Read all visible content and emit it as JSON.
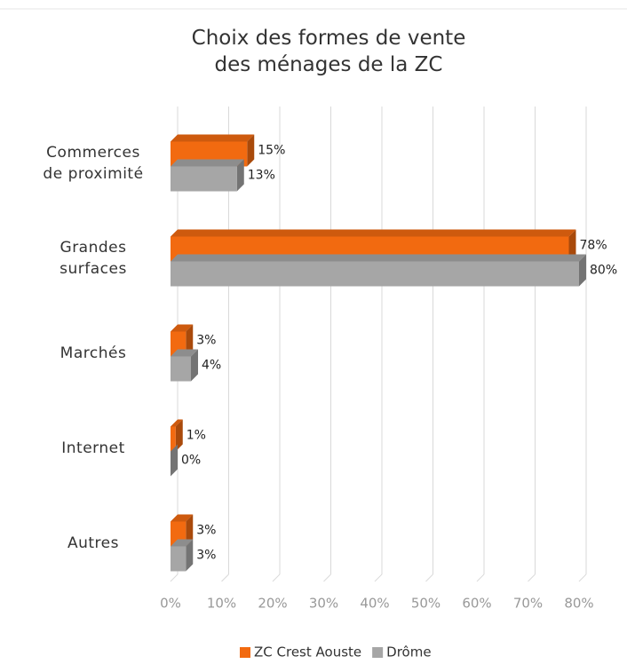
{
  "chart_data": {
    "type": "bar",
    "orientation": "horizontal",
    "title": "Choix des formes de vente des ménages de la ZC",
    "categories": [
      "Commerces de proximité",
      "Grandes surfaces",
      "Marchés",
      "Internet",
      "Autres"
    ],
    "series": [
      {
        "name": "ZC Crest Aouste",
        "color": "#f26a10",
        "values": [
          15,
          78,
          3,
          1,
          3
        ],
        "value_labels": [
          "15%",
          "78%",
          "3%",
          "1%",
          "3%"
        ]
      },
      {
        "name": "Drôme",
        "color": "#a6a6a6",
        "values": [
          13,
          80,
          4,
          0,
          3
        ],
        "value_labels": [
          "13%",
          "80%",
          "4%",
          "0%",
          "3%"
        ]
      }
    ],
    "xlim": [
      0,
      80
    ],
    "xticks": [
      {
        "value": 0,
        "label": "0%"
      },
      {
        "value": 10,
        "label": "10%"
      },
      {
        "value": 20,
        "label": "20%"
      },
      {
        "value": 30,
        "label": "30%"
      },
      {
        "value": 40,
        "label": "40%"
      },
      {
        "value": 50,
        "label": "50%"
      },
      {
        "value": 60,
        "label": "60%"
      },
      {
        "value": 70,
        "label": "70%"
      },
      {
        "value": 80,
        "label": "80%"
      }
    ],
    "grid": true,
    "legend": "bottom"
  }
}
